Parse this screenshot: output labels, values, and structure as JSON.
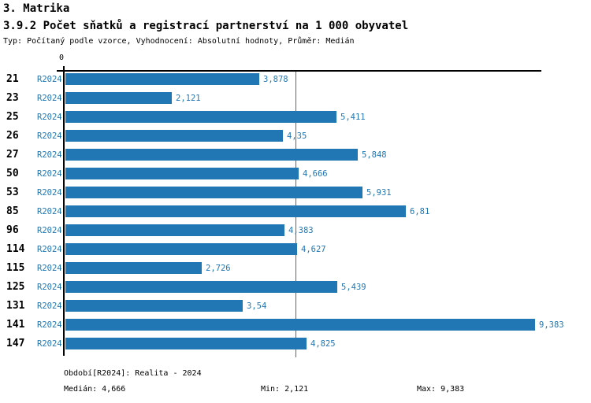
{
  "header": {
    "section_title": "3. Matrika",
    "chart_title": "3.9.2 Počet sňatků a registrací partnerství na 1 000 obyvatel",
    "subtitle": "Typ: Počítaný podle vzorce, Vyhodnocení: Absolutní hodnoty, Průměr: Medián"
  },
  "chart_data": {
    "type": "bar",
    "orientation": "horizontal",
    "title": "3.9.2 Počet sňatků a registrací partnerství na 1 000 obyvatel",
    "categories": [
      "21",
      "23",
      "25",
      "26",
      "27",
      "50",
      "53",
      "85",
      "96",
      "114",
      "115",
      "125",
      "131",
      "141",
      "147"
    ],
    "series_label": "R2024",
    "values": [
      3.878,
      2.121,
      5.411,
      4.35,
      5.848,
      4.666,
      5.931,
      6.81,
      4.383,
      4.627,
      2.726,
      5.439,
      3.54,
      9.383,
      4.825
    ],
    "value_labels": [
      "3,878",
      "2,121",
      "5,411",
      "4,35",
      "5,848",
      "4,666",
      "5,931",
      "6,81",
      "4,383",
      "4,627",
      "2,726",
      "5,439",
      "3,54",
      "9,383",
      "4,825"
    ],
    "axis_origin_label": "0",
    "xlim": [
      0,
      9.5
    ],
    "median_value": 4.666,
    "grid": false,
    "legend": false,
    "bar_color": "#2177b4",
    "median_line_color": "#2177b4",
    "label_color": "#2177b4",
    "axis_color": "#000000"
  },
  "footer": {
    "period_label": "Období[R2024]: Realita - 2024",
    "median_label": "Medián: 4,666",
    "min_label": "Min: 2,121",
    "max_label": "Max: 9,383"
  }
}
